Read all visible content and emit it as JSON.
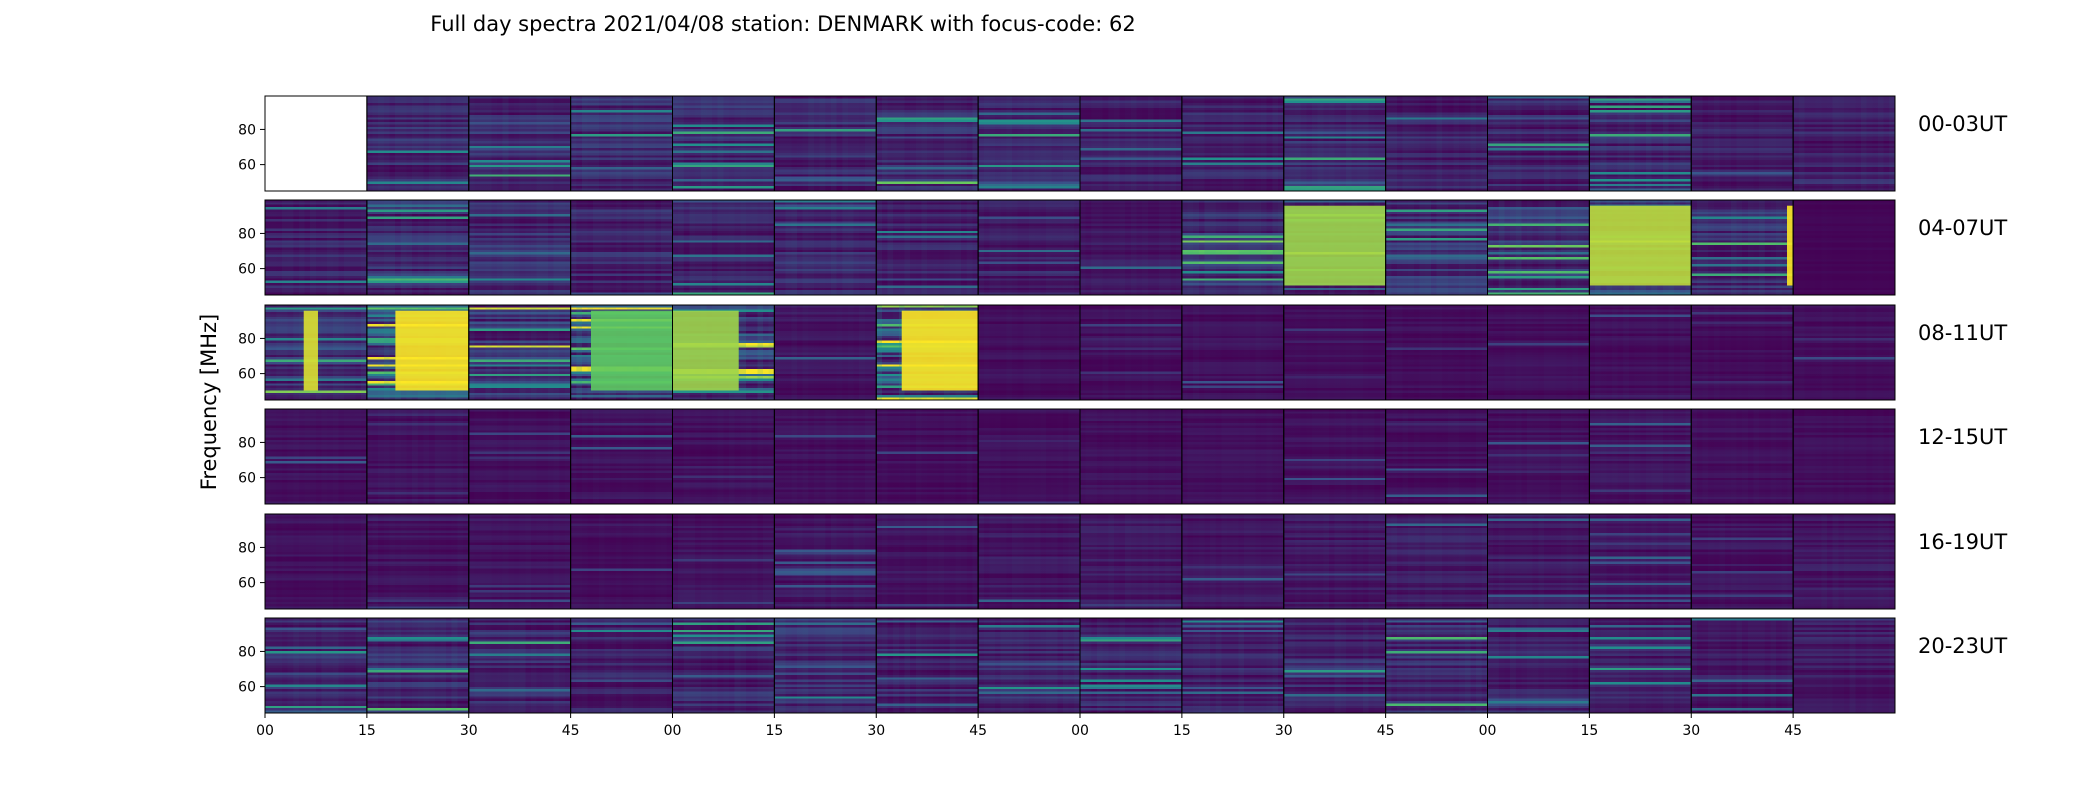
{
  "chart_data": {
    "type": "heatmap",
    "title": "Full day spectra 2021/04/08 station: DENMARK with focus-code: 62",
    "ylabel": "Frequency [MHz]",
    "xlabel": "",
    "colormap": "viridis",
    "colormap_stops": [
      "#440154",
      "#3b528b",
      "#21918c",
      "#5ec962",
      "#fde725"
    ],
    "frequency_range_mhz": [
      45,
      99
    ],
    "y_ticks": [
      "80",
      "60"
    ],
    "y_tick_values": [
      80,
      60
    ],
    "x_ticks": [
      "00",
      "15",
      "30",
      "45",
      "00",
      "15",
      "30",
      "45",
      "00",
      "15",
      "30",
      "45",
      "00",
      "15",
      "30",
      "45"
    ],
    "panels_per_row": 16,
    "minutes_per_panel": 15,
    "rows": [
      {
        "label": "00-03UT",
        "missing_panels": [
          0
        ],
        "intensity": [
          0,
          0.4,
          0.45,
          0.42,
          0.4,
          0.4,
          0.42,
          0.35,
          0.32,
          0.33,
          0.4,
          0.36,
          0.36,
          0.38,
          0.3,
          0.34
        ]
      },
      {
        "label": "04-07UT",
        "missing_panels": [],
        "intensity": [
          0.32,
          0.4,
          0.42,
          0.36,
          0.35,
          0.38,
          0.32,
          0.25,
          0.22,
          0.48,
          0.6,
          0.45,
          0.55,
          0.7,
          0.45,
          0.05
        ]
      },
      {
        "label": "08-11UT",
        "missing_panels": [],
        "intensity": [
          0.45,
          0.95,
          0.5,
          0.8,
          0.7,
          0.2,
          0.9,
          0.15,
          0.15,
          0.15,
          0.12,
          0.14,
          0.14,
          0.14,
          0.12,
          0.14
        ]
      },
      {
        "label": "12-15UT",
        "missing_panels": [],
        "intensity": [
          0.15,
          0.18,
          0.16,
          0.16,
          0.16,
          0.15,
          0.14,
          0.14,
          0.15,
          0.14,
          0.16,
          0.16,
          0.18,
          0.18,
          0.14,
          0.12
        ]
      },
      {
        "label": "16-19UT",
        "missing_panels": [],
        "intensity": [
          0.16,
          0.18,
          0.16,
          0.14,
          0.18,
          0.22,
          0.18,
          0.22,
          0.24,
          0.2,
          0.22,
          0.26,
          0.24,
          0.2,
          0.18,
          0.22
        ]
      },
      {
        "label": "20-23UT",
        "missing_panels": [],
        "intensity": [
          0.38,
          0.38,
          0.36,
          0.32,
          0.38,
          0.42,
          0.36,
          0.34,
          0.34,
          0.34,
          0.34,
          0.4,
          0.3,
          0.3,
          0.26,
          0.28
        ]
      }
    ],
    "burst_events": [
      {
        "row": 2,
        "panel": 0,
        "from": 0.38,
        "to": 0.52,
        "level": 0.95
      },
      {
        "row": 2,
        "panel": 1,
        "from": 0.28,
        "to": 1.0,
        "level": 1.0
      },
      {
        "row": 2,
        "panel": 3,
        "from": 0.2,
        "to": 1.0,
        "level": 0.75
      },
      {
        "row": 2,
        "panel": 4,
        "from": 0.0,
        "to": 0.65,
        "level": 0.85
      },
      {
        "row": 2,
        "panel": 6,
        "from": 0.25,
        "to": 1.0,
        "level": 1.0
      },
      {
        "row": 1,
        "panel": 10,
        "from": 0.0,
        "to": 1.0,
        "level": 0.85
      },
      {
        "row": 1,
        "panel": 13,
        "from": 0.0,
        "to": 1.0,
        "level": 0.9
      },
      {
        "row": 1,
        "panel": 14,
        "from": 0.94,
        "to": 1.0,
        "level": 1.0
      }
    ]
  }
}
